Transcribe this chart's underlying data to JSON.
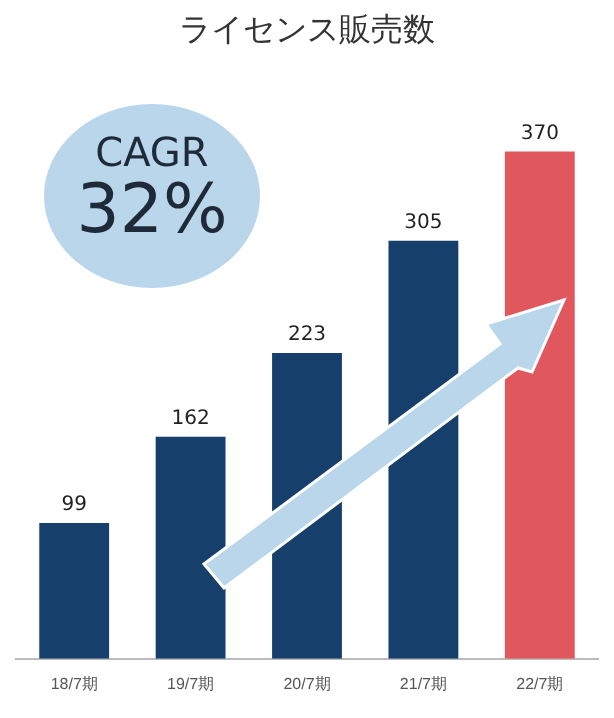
{
  "chart_data": {
    "type": "bar",
    "title": "ライセンス販売数",
    "categories": [
      "18/7期",
      "19/7期",
      "20/7期",
      "21/7期",
      "22/7期"
    ],
    "values": [
      99,
      162,
      223,
      305,
      370
    ],
    "colors": [
      "#173f6b",
      "#173f6b",
      "#173f6b",
      "#173f6b",
      "#e0585e"
    ],
    "data_labels": true,
    "tick_labels": "x",
    "grid": false,
    "legend": false,
    "annotations": [
      "CAGR",
      "32%"
    ]
  }
}
